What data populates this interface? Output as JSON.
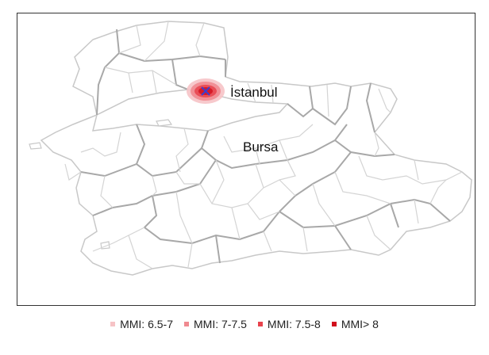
{
  "map": {
    "cities": [
      {
        "name": "İstanbul"
      },
      {
        "name": "Bursa"
      }
    ],
    "epicenter_marker": "x-cross-icon"
  },
  "legend": {
    "items": [
      {
        "label": "MMI: 6.5-7",
        "color": "#f6c3c6"
      },
      {
        "label": "MMI: 7-7.5",
        "color": "#f08a90"
      },
      {
        "label": "MMI: 7.5-8",
        "color": "#e8434c"
      },
      {
        "label": "MMI> 8",
        "color": "#d10f1c"
      }
    ]
  },
  "colors": {
    "border_major": "#a8a8a8",
    "border_minor": "#d0d0d0",
    "epicenter": "#3b3fd0"
  }
}
